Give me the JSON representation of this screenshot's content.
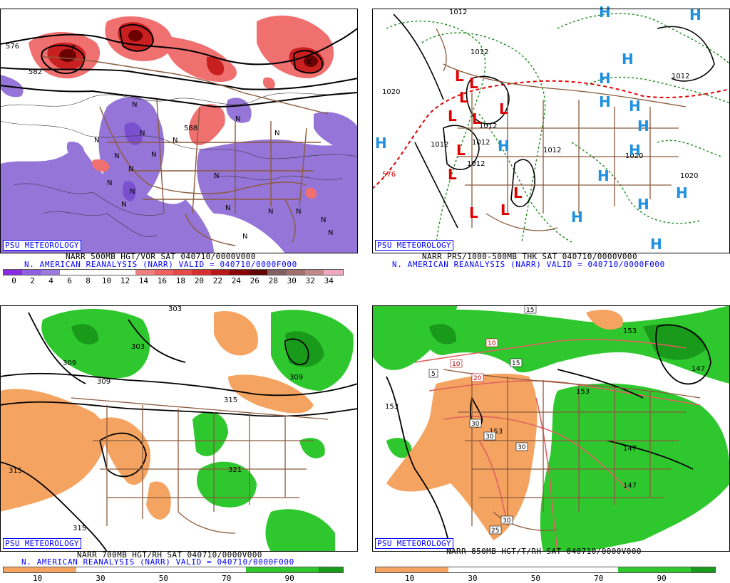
{
  "panels": [
    {
      "id": "vor500",
      "watermark": "PSU METEOROLOGY",
      "caption_line1": "NARR 500MB HGT/VOR SAT 040710/0000V000",
      "caption_line2": "N. AMERICAN REANALYSIS (NARR) VALID = 040710/0000F000",
      "colorbar_colors": [
        "#8a2be2",
        "#8f5fe0",
        "#9b7ae0",
        "#ffffff",
        "#ffffff",
        "#ffffff",
        "#ffffff",
        "#f08080",
        "#f06060",
        "#e84848",
        "#d83030",
        "#b81818",
        "#8b0000",
        "#600000",
        "#806060",
        "#a07070",
        "#c08888",
        "#f0a8c0"
      ],
      "colorbar_ticks": [
        "0",
        "2",
        "4",
        "6",
        "8",
        "10",
        "12",
        "14",
        "16",
        "18",
        "20",
        "22",
        "24",
        "26",
        "28",
        "30",
        "32",
        "34"
      ],
      "contour_labels": [
        "576",
        "582",
        "588",
        "N",
        "N",
        "N",
        "N",
        "N",
        "N",
        "N",
        "N",
        "N",
        "N",
        "N",
        "N",
        "N",
        "N",
        "N",
        "N",
        "N",
        "N",
        "N",
        "X",
        "X"
      ]
    },
    {
      "id": "prs",
      "watermark": "PSU METEOROLOGY",
      "caption_line1": "NARR PRS/1000-500MB THK SAT 040710/0000V000",
      "caption_line2": "N. AMERICAN REANALYSIS (NARR) VALID = 040710/0000F000",
      "contour_labels": [
        "1012",
        "1012",
        "1020",
        "1012",
        "1012",
        "1012",
        "1012",
        "1012",
        "1020",
        "1020",
        "576",
        "1012"
      ],
      "high_letter": "H",
      "low_letter": "L",
      "high_color": "#2090e0",
      "low_color": "#e00000"
    },
    {
      "id": "rh700",
      "watermark": "PSU METEOROLOGY",
      "caption_line1": "NARR 700MB HGT/RH SAT 040710/0000V000",
      "caption_line2": "N. AMERICAN REANALYSIS (NARR) VALID = 040710/0000F000",
      "colorbar_colors": [
        "#f4a460",
        "#f4a460",
        "#f4a460",
        "#ffffff",
        "#ffffff",
        "#ffffff",
        "#ffffff",
        "#ffffff",
        "#ffffff",
        "#ffffff",
        "#2ec82e",
        "#2ec82e",
        "#2ec82e",
        "#1a9a1a"
      ],
      "colorbar_ticks": [
        "10",
        "30",
        "50",
        "70",
        "90"
      ],
      "contour_labels": [
        "303",
        "303",
        "309",
        "309",
        "309",
        "315",
        "315",
        "315",
        "321"
      ]
    },
    {
      "id": "rh850",
      "watermark": "PSU METEOROLOGY",
      "caption_line1": "NARR 850MB HGT/T/RH SAT 040710/0000V000",
      "caption_line2": "",
      "colorbar_colors": [
        "#f4a460",
        "#f4a460",
        "#f4a460",
        "#ffffff",
        "#ffffff",
        "#ffffff",
        "#ffffff",
        "#ffffff",
        "#ffffff",
        "#ffffff",
        "#2ec82e",
        "#2ec82e",
        "#2ec82e",
        "#1a9a1a"
      ],
      "colorbar_ticks": [
        "10",
        "30",
        "50",
        "70",
        "90"
      ],
      "contour_labels": [
        "153",
        "153",
        "147",
        "153",
        "147",
        "147",
        "153"
      ],
      "temp_labels": [
        "15",
        "10",
        "10",
        "15",
        "20",
        "5",
        "30",
        "30",
        "30",
        "30",
        "25"
      ]
    }
  ]
}
